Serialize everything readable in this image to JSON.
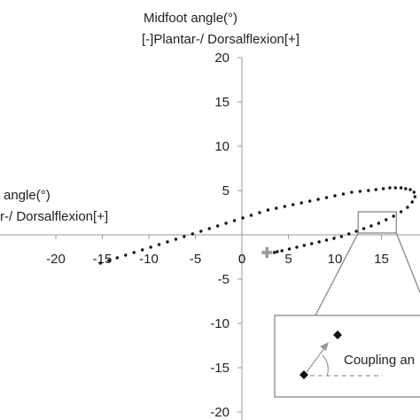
{
  "chart_data": {
    "type": "scatter",
    "title": "",
    "ylabel_line1": "Midfoot angle(°)",
    "ylabel_line2": "[-]Plantar-/ Dorsalflexion[+]",
    "xlabel_line1": "angle(°)",
    "xlabel_line2": "r-/ Dorsalflexion[+]",
    "xlim": [
      -20,
      20
    ],
    "ylim": [
      -20,
      20
    ],
    "x_ticks": [
      -20,
      -15,
      -10,
      -5,
      0,
      5,
      10,
      15
    ],
    "y_ticks": [
      -20,
      -15,
      -10,
      -5,
      5,
      10,
      15,
      20
    ],
    "origin_label": "0",
    "grid": false,
    "series": [
      {
        "marker": "dot",
        "color": "#111111",
        "x": [
          -15.2,
          -14.3,
          -13.4,
          -12.5,
          -11.6,
          -10.7,
          -9.8,
          -8.9,
          -8.0,
          -7.1,
          -6.2,
          -5.3,
          -4.4,
          -3.5,
          -2.6,
          -1.7,
          -0.8,
          0.1,
          1.0,
          1.9,
          2.8,
          3.7,
          4.6,
          5.5,
          6.4,
          7.3,
          8.2,
          9.1,
          10.0,
          10.9,
          11.8,
          12.7,
          13.6,
          14.4,
          15.2,
          15.9,
          16.5,
          17.1,
          17.6,
          18.1,
          18.5,
          18.6,
          18.3,
          17.8,
          17.1,
          16.3,
          15.5,
          14.7,
          13.9,
          13.1,
          12.3,
          11.5,
          10.7,
          9.9,
          9.1,
          8.3,
          7.5,
          6.7,
          5.9,
          5.1,
          4.3,
          3.8,
          3.5
        ],
        "y": [
          -3.2,
          -2.9,
          -2.6,
          -2.3,
          -2.0,
          -1.7,
          -1.4,
          -1.1,
          -0.8,
          -0.5,
          -0.2,
          0.1,
          0.4,
          0.7,
          1.0,
          1.3,
          1.6,
          1.9,
          2.2,
          2.5,
          2.8,
          3.0,
          3.2,
          3.4,
          3.6,
          3.8,
          4.0,
          4.2,
          4.4,
          4.6,
          4.8,
          4.9,
          5.0,
          5.1,
          5.2,
          5.3,
          5.3,
          5.3,
          5.2,
          5.1,
          4.8,
          4.3,
          3.7,
          3.1,
          2.6,
          2.1,
          1.7,
          1.3,
          1.0,
          0.7,
          0.4,
          0.1,
          -0.2,
          -0.4,
          -0.6,
          -0.8,
          -1.0,
          -1.2,
          -1.4,
          -1.6,
          -1.8,
          -1.9,
          -2.0
        ]
      }
    ],
    "start_marker": {
      "shape": "plus",
      "color": "#999999",
      "x": 2.7,
      "y": -2.0
    },
    "highlight_box": {
      "x": [
        12.5,
        16.6
      ],
      "y": [
        0.2,
        2.6
      ]
    },
    "inset": {
      "label": "Coupling an",
      "point_a": "diamond",
      "point_b": "diamond"
    }
  }
}
